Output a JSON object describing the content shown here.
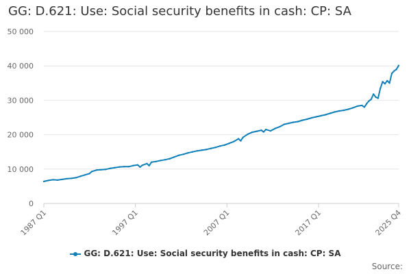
{
  "chart_data": {
    "type": "line",
    "title": "GG: D.621: Use: Social security benefits in cash: CP: SA",
    "xlabel": "",
    "ylabel": "",
    "x_tick_labels": [
      "1987 Q1",
      "1997 Q1",
      "2007 Q1",
      "2017 Q1",
      "2025 Q4"
    ],
    "x_range": [
      "1987 Q1",
      "2025 Q4"
    ],
    "y_tick_labels": [
      "0",
      "10 000",
      "20 000",
      "30 000",
      "40 000",
      "50 000"
    ],
    "y_ticks": [
      0,
      10000,
      20000,
      30000,
      40000,
      50000
    ],
    "ylim": [
      0,
      50000
    ],
    "grid": true,
    "legend_position": "bottom",
    "series": [
      {
        "name": "GG: D.621: Use: Social security benefits in cash: CP: SA",
        "color": "#0e7fb8",
        "points": [
          [
            "1987 Q1",
            6400
          ],
          [
            "1987 Q3",
            6700
          ],
          [
            "1988 Q1",
            6900
          ],
          [
            "1988 Q3",
            6800
          ],
          [
            "1989 Q1",
            7000
          ],
          [
            "1989 Q3",
            7200
          ],
          [
            "1990 Q1",
            7300
          ],
          [
            "1990 Q3",
            7500
          ],
          [
            "1991 Q1",
            7900
          ],
          [
            "1991 Q3",
            8300
          ],
          [
            "1992 Q1",
            8700
          ],
          [
            "1992 Q2",
            9300
          ],
          [
            "1992 Q4",
            9700
          ],
          [
            "1993 Q2",
            9800
          ],
          [
            "1993 Q4",
            9900
          ],
          [
            "1994 Q2",
            10200
          ],
          [
            "1994 Q4",
            10400
          ],
          [
            "1995 Q2",
            10600
          ],
          [
            "1995 Q4",
            10700
          ],
          [
            "1996 Q2",
            10700
          ],
          [
            "1996 Q4",
            11000
          ],
          [
            "1997 Q2",
            11200
          ],
          [
            "1997 Q3",
            10600
          ],
          [
            "1997 Q4",
            11100
          ],
          [
            "1998 Q2",
            11600
          ],
          [
            "1998 Q3",
            11000
          ],
          [
            "1998 Q4",
            12000
          ],
          [
            "1999 Q2",
            12200
          ],
          [
            "1999 Q4",
            12500
          ],
          [
            "2000 Q2",
            12700
          ],
          [
            "2000 Q4",
            13000
          ],
          [
            "2001 Q2",
            13500
          ],
          [
            "2001 Q4",
            14000
          ],
          [
            "2002 Q2",
            14300
          ],
          [
            "2002 Q4",
            14700
          ],
          [
            "2003 Q2",
            15000
          ],
          [
            "2003 Q4",
            15300
          ],
          [
            "2004 Q2",
            15500
          ],
          [
            "2004 Q4",
            15700
          ],
          [
            "2005 Q2",
            16000
          ],
          [
            "2005 Q4",
            16300
          ],
          [
            "2006 Q2",
            16700
          ],
          [
            "2006 Q4",
            17000
          ],
          [
            "2007 Q2",
            17500
          ],
          [
            "2007 Q4",
            18000
          ],
          [
            "2008 Q2",
            18800
          ],
          [
            "2008 Q3",
            18200
          ],
          [
            "2008 Q4",
            19200
          ],
          [
            "2009 Q2",
            20100
          ],
          [
            "2009 Q4",
            20700
          ],
          [
            "2010 Q2",
            21000
          ],
          [
            "2010 Q4",
            21300
          ],
          [
            "2011 Q1",
            20800
          ],
          [
            "2011 Q2",
            21500
          ],
          [
            "2011 Q4",
            21100
          ],
          [
            "2012 Q2",
            21800
          ],
          [
            "2012 Q4",
            22300
          ],
          [
            "2013 Q2",
            23000
          ],
          [
            "2013 Q4",
            23300
          ],
          [
            "2014 Q2",
            23600
          ],
          [
            "2014 Q4",
            23800
          ],
          [
            "2015 Q2",
            24200
          ],
          [
            "2015 Q4",
            24500
          ],
          [
            "2016 Q2",
            24900
          ],
          [
            "2016 Q4",
            25200
          ],
          [
            "2017 Q2",
            25500
          ],
          [
            "2017 Q4",
            25800
          ],
          [
            "2018 Q2",
            26200
          ],
          [
            "2018 Q4",
            26600
          ],
          [
            "2019 Q2",
            26900
          ],
          [
            "2019 Q4",
            27100
          ],
          [
            "2020 Q2",
            27400
          ],
          [
            "2020 Q4",
            27800
          ],
          [
            "2021 Q2",
            28300
          ],
          [
            "2021 Q4",
            28500
          ],
          [
            "2022 Q1",
            28000
          ],
          [
            "2022 Q2",
            29000
          ],
          [
            "2022 Q3",
            29800
          ],
          [
            "2022 Q4",
            30300
          ],
          [
            "2023 Q1",
            31800
          ],
          [
            "2023 Q2",
            30900
          ],
          [
            "2023 Q3",
            30600
          ],
          [
            "2023 Q4",
            33500
          ],
          [
            "2024 Q1",
            35400
          ],
          [
            "2024 Q2",
            34800
          ],
          [
            "2024 Q3",
            35700
          ],
          [
            "2024 Q4",
            35000
          ],
          [
            "2025 Q1",
            37800
          ],
          [
            "2025 Q2",
            38500
          ],
          [
            "2025 Q3",
            39000
          ],
          [
            "2025 Q4",
            40100
          ]
        ]
      }
    ],
    "source_label": "Source:"
  }
}
